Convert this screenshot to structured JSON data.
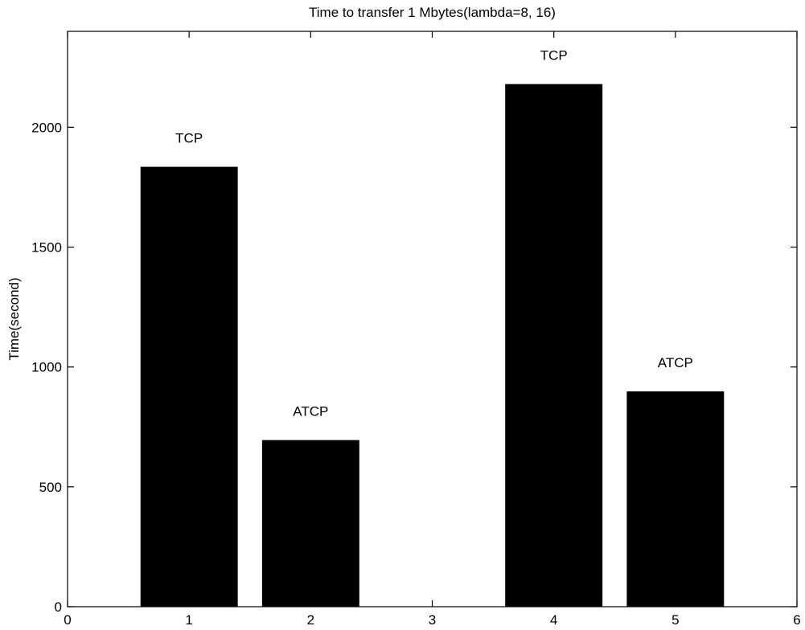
{
  "chart_data": {
    "type": "bar",
    "title": "Time to transfer 1 Mbytes(lambda=8, 16)",
    "xlabel": "",
    "ylabel": "Time(second)",
    "x": [
      1,
      2,
      4,
      5
    ],
    "values": [
      1835,
      695,
      2180,
      898
    ],
    "labels": [
      "TCP",
      "ATCP",
      "TCP",
      "ATCP"
    ],
    "bar_width": 0.8,
    "xlim": [
      0,
      6
    ],
    "ylim": [
      0,
      2400
    ],
    "xticks": [
      0,
      1,
      2,
      3,
      4,
      5,
      6
    ],
    "yticks": [
      0,
      500,
      1000,
      1500,
      2000
    ],
    "grid": false,
    "bar_color": "#000000"
  }
}
